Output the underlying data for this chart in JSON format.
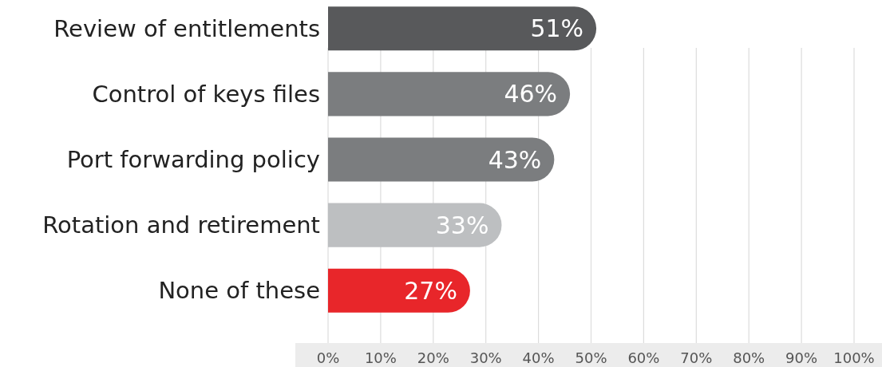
{
  "chart_data": {
    "type": "bar",
    "orientation": "horizontal",
    "categories": [
      "Review of entitlements",
      "Control of keys files",
      "Port forwarding policy",
      "Rotation and retirement",
      "None of these"
    ],
    "values": [
      51,
      46,
      43,
      33,
      27
    ],
    "colors": [
      "#58595b",
      "#7b7d7f",
      "#7b7d7f",
      "#bdbfc1",
      "#e8262a"
    ],
    "value_labels": [
      "51%",
      "46%",
      "43%",
      "33%",
      "27%"
    ],
    "xlim": [
      0,
      100
    ],
    "xticks": [
      {
        "value": 0,
        "label": "0%"
      },
      {
        "value": 10,
        "label": "10%"
      },
      {
        "value": 20,
        "label": "20%"
      },
      {
        "value": 30,
        "label": "30%"
      },
      {
        "value": 40,
        "label": "40%"
      },
      {
        "value": 50,
        "label": "50%"
      },
      {
        "value": 60,
        "label": "60%"
      },
      {
        "value": 70,
        "label": "70%"
      },
      {
        "value": 80,
        "label": "80%"
      },
      {
        "value": 90,
        "label": "90%"
      },
      {
        "value": 100,
        "label": "100%"
      }
    ],
    "grid": "x"
  }
}
